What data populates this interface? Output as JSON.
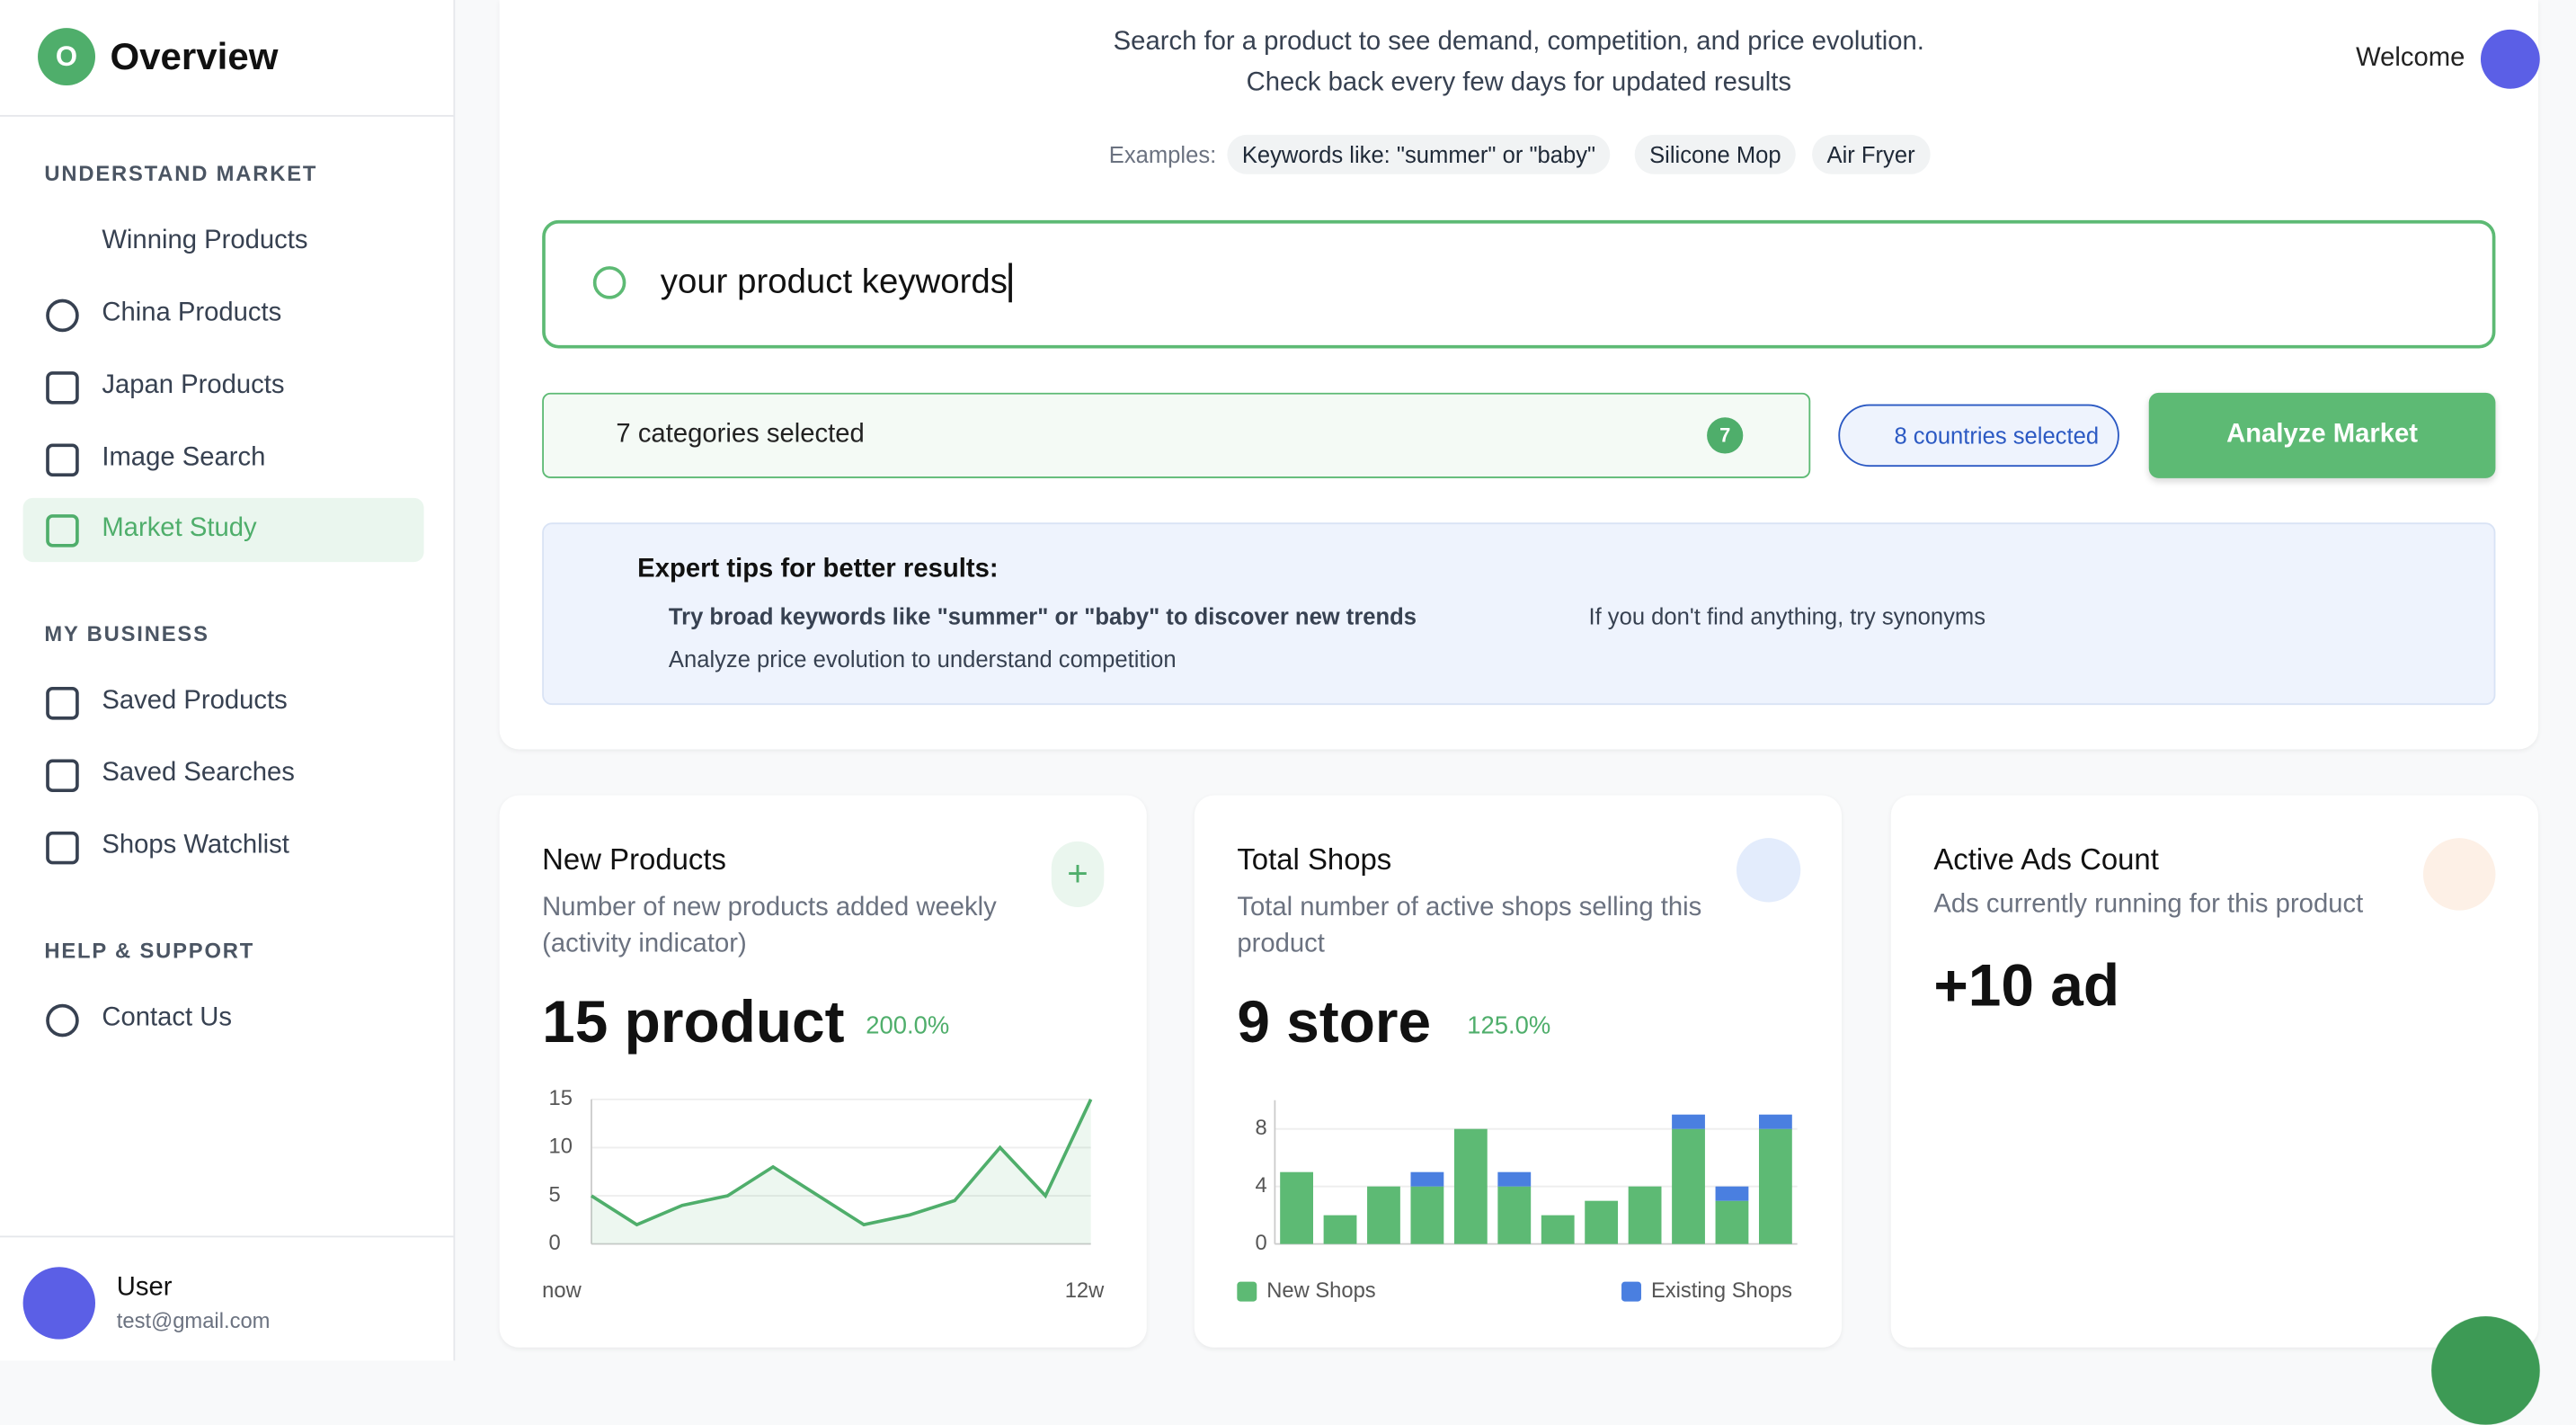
{
  "sidebar": {
    "logo": "O",
    "title": "Overview",
    "sections": [
      {
        "title": "UNDERSTAND MARKET",
        "items": [
          "Winning Products",
          "China Products",
          "Japan Products",
          "Image Search",
          "Market Study"
        ]
      },
      {
        "title": "MY BUSINESS",
        "items": [
          "Saved Products",
          "Saved Searches",
          "Shops Watchlist"
        ]
      },
      {
        "title": "HELP & SUPPORT",
        "items": [
          "Contact Us"
        ]
      }
    ],
    "user": {
      "name": "User",
      "email": "test@gmail.com"
    }
  },
  "header": {
    "line1": "Search for a product to see demand, competition, and price evolution.",
    "line2": "Check back every few days for updated results",
    "welcome": "Welcome"
  },
  "examples": {
    "label": "Examples:",
    "chips": [
      "Keywords like: \"summer\" or \"baby\"",
      "Silicone Mop",
      "Air Fryer"
    ]
  },
  "search": {
    "value": "your product keywords"
  },
  "filters": {
    "categories": "7 categories selected",
    "badge": "7",
    "countries": "8 countries selected",
    "button": "Analyze Market"
  },
  "tips": {
    "title": "Expert tips for better results:",
    "items": [
      "Try broad keywords like \"summer\" or \"baby\" to discover new trends",
      "If you don't find anything, try synonyms",
      "Analyze price evolution to understand competition"
    ]
  },
  "cards": [
    {
      "title": "New Products",
      "desc": "Number of new products added weekly (activity indicator)",
      "value": "15 product",
      "change": "200.0%"
    },
    {
      "title": "Total Shops",
      "desc": "Total number of active shops selling this product",
      "value": "9 store",
      "change": "125.0%"
    },
    {
      "title": "Active Ads Count",
      "desc": "Ads currently running for this product",
      "value": "+10 ad"
    }
  ],
  "chart_data": [
    {
      "type": "line",
      "categories": [
        "now",
        null,
        null,
        null,
        null,
        null,
        null,
        null,
        null,
        null,
        null,
        "12w"
      ],
      "values": [
        5,
        2,
        4,
        5,
        8,
        5,
        2,
        3,
        4.5,
        10,
        5,
        15
      ],
      "color": "#4fae6b",
      "ylim": [
        0,
        15
      ],
      "yticks": [
        0,
        5,
        10,
        15
      ],
      "grid": true
    },
    {
      "type": "bar",
      "stacked": true,
      "categories": [
        null,
        null,
        null,
        null,
        null,
        null,
        null,
        null,
        null,
        null,
        null,
        null
      ],
      "series": [
        {
          "name": "New Shops",
          "color": "#5dba74",
          "values": [
            5,
            2,
            4,
            4,
            8,
            4,
            2,
            3,
            4,
            8,
            3,
            8
          ]
        },
        {
          "name": "Existing Shops",
          "color": "#4a7fe0",
          "values": [
            0,
            0,
            0,
            1,
            0,
            1,
            0,
            0,
            0,
            1,
            1,
            1
          ]
        }
      ],
      "ylim": [
        0,
        10
      ],
      "yticks": [
        0,
        4,
        8
      ],
      "grid": true
    }
  ]
}
